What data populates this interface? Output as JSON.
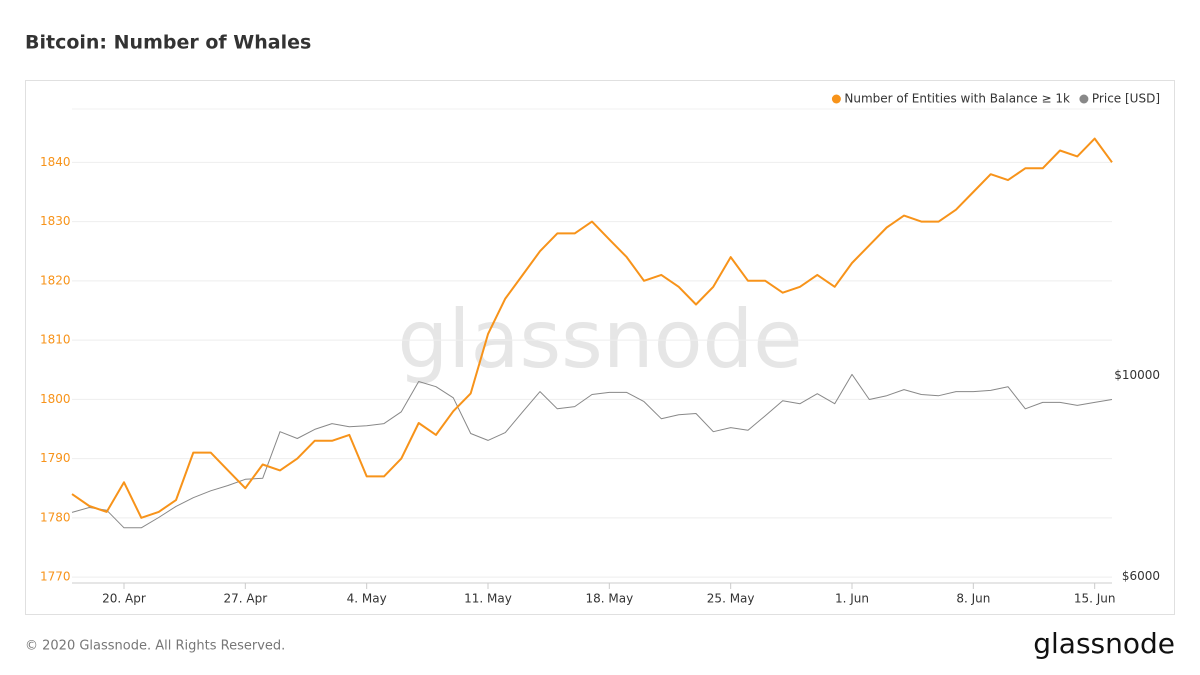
{
  "chart_data": {
    "type": "line",
    "title": "Bitcoin: Number of Whales",
    "watermark": "glassnode",
    "footer": "© 2020 Glassnode. All Rights Reserved.",
    "logo": "glassnode",
    "categories": [
      null,
      null,
      null,
      "20. Apr",
      null,
      null,
      null,
      null,
      null,
      null,
      "27. Apr",
      null,
      null,
      null,
      null,
      null,
      null,
      "4. May",
      null,
      null,
      null,
      null,
      null,
      null,
      "11. May",
      null,
      null,
      null,
      null,
      null,
      null,
      "18. May",
      null,
      null,
      null,
      null,
      null,
      null,
      "25. May",
      null,
      null,
      null,
      null,
      null,
      null,
      "1. Jun",
      null,
      null,
      null,
      null,
      null,
      null,
      "8. Jun",
      null,
      null,
      null,
      null,
      null,
      null,
      "15. Jun",
      null
    ],
    "series": [
      {
        "name": "Number of Entities with Balance ≥ 1k",
        "color": "#f7931a",
        "values": [
          1784,
          1782,
          1781,
          1786,
          1780,
          1781,
          1783,
          1791,
          1791,
          1788,
          1785,
          1789,
          1788,
          1790,
          1793,
          1793,
          1794,
          1787,
          1787,
          1790,
          1796,
          1794,
          1798,
          1801,
          1811,
          1817,
          1821,
          1825,
          1828,
          1828,
          1830,
          1827,
          1824,
          1820,
          1821,
          1819,
          1816,
          1819,
          1824,
          1820,
          1820,
          1818,
          1819,
          1821,
          1819,
          1823,
          1826,
          1829,
          1831,
          1830,
          1830,
          1832,
          1835,
          1838,
          1837,
          1839,
          1839,
          1842,
          1841,
          1844,
          1840
        ]
      },
      {
        "name": "Price [USD]",
        "color": "#888888",
        "axis": "y2",
        "values": [
          7060,
          7150,
          7100,
          6790,
          6790,
          6970,
          7170,
          7330,
          7460,
          7560,
          7680,
          7700,
          8670,
          8520,
          8720,
          8850,
          8780,
          8800,
          8850,
          9120,
          9850,
          9720,
          9450,
          8630,
          8480,
          8650,
          9120,
          9600,
          9190,
          9240,
          9530,
          9580,
          9580,
          9360,
          8960,
          9050,
          9080,
          8670,
          8760,
          8700,
          9030,
          9380,
          9310,
          9550,
          9310,
          10030,
          9410,
          9500,
          9650,
          9530,
          9500,
          9600,
          9600,
          9630,
          9720,
          9190,
          9340,
          9340,
          9270,
          9340,
          9410
        ]
      }
    ],
    "ylim": [
      1769,
      1849
    ],
    "yticks": [
      1770,
      1780,
      1790,
      1800,
      1810,
      1820,
      1830,
      1840
    ],
    "y2lim": [
      5900,
      19700
    ],
    "y2ticks": [
      {
        "value": 6000,
        "label": "$6000"
      },
      {
        "value": 10000,
        "label": "$10000"
      }
    ],
    "y2_log": true,
    "grid": true,
    "legend": "top-right"
  }
}
